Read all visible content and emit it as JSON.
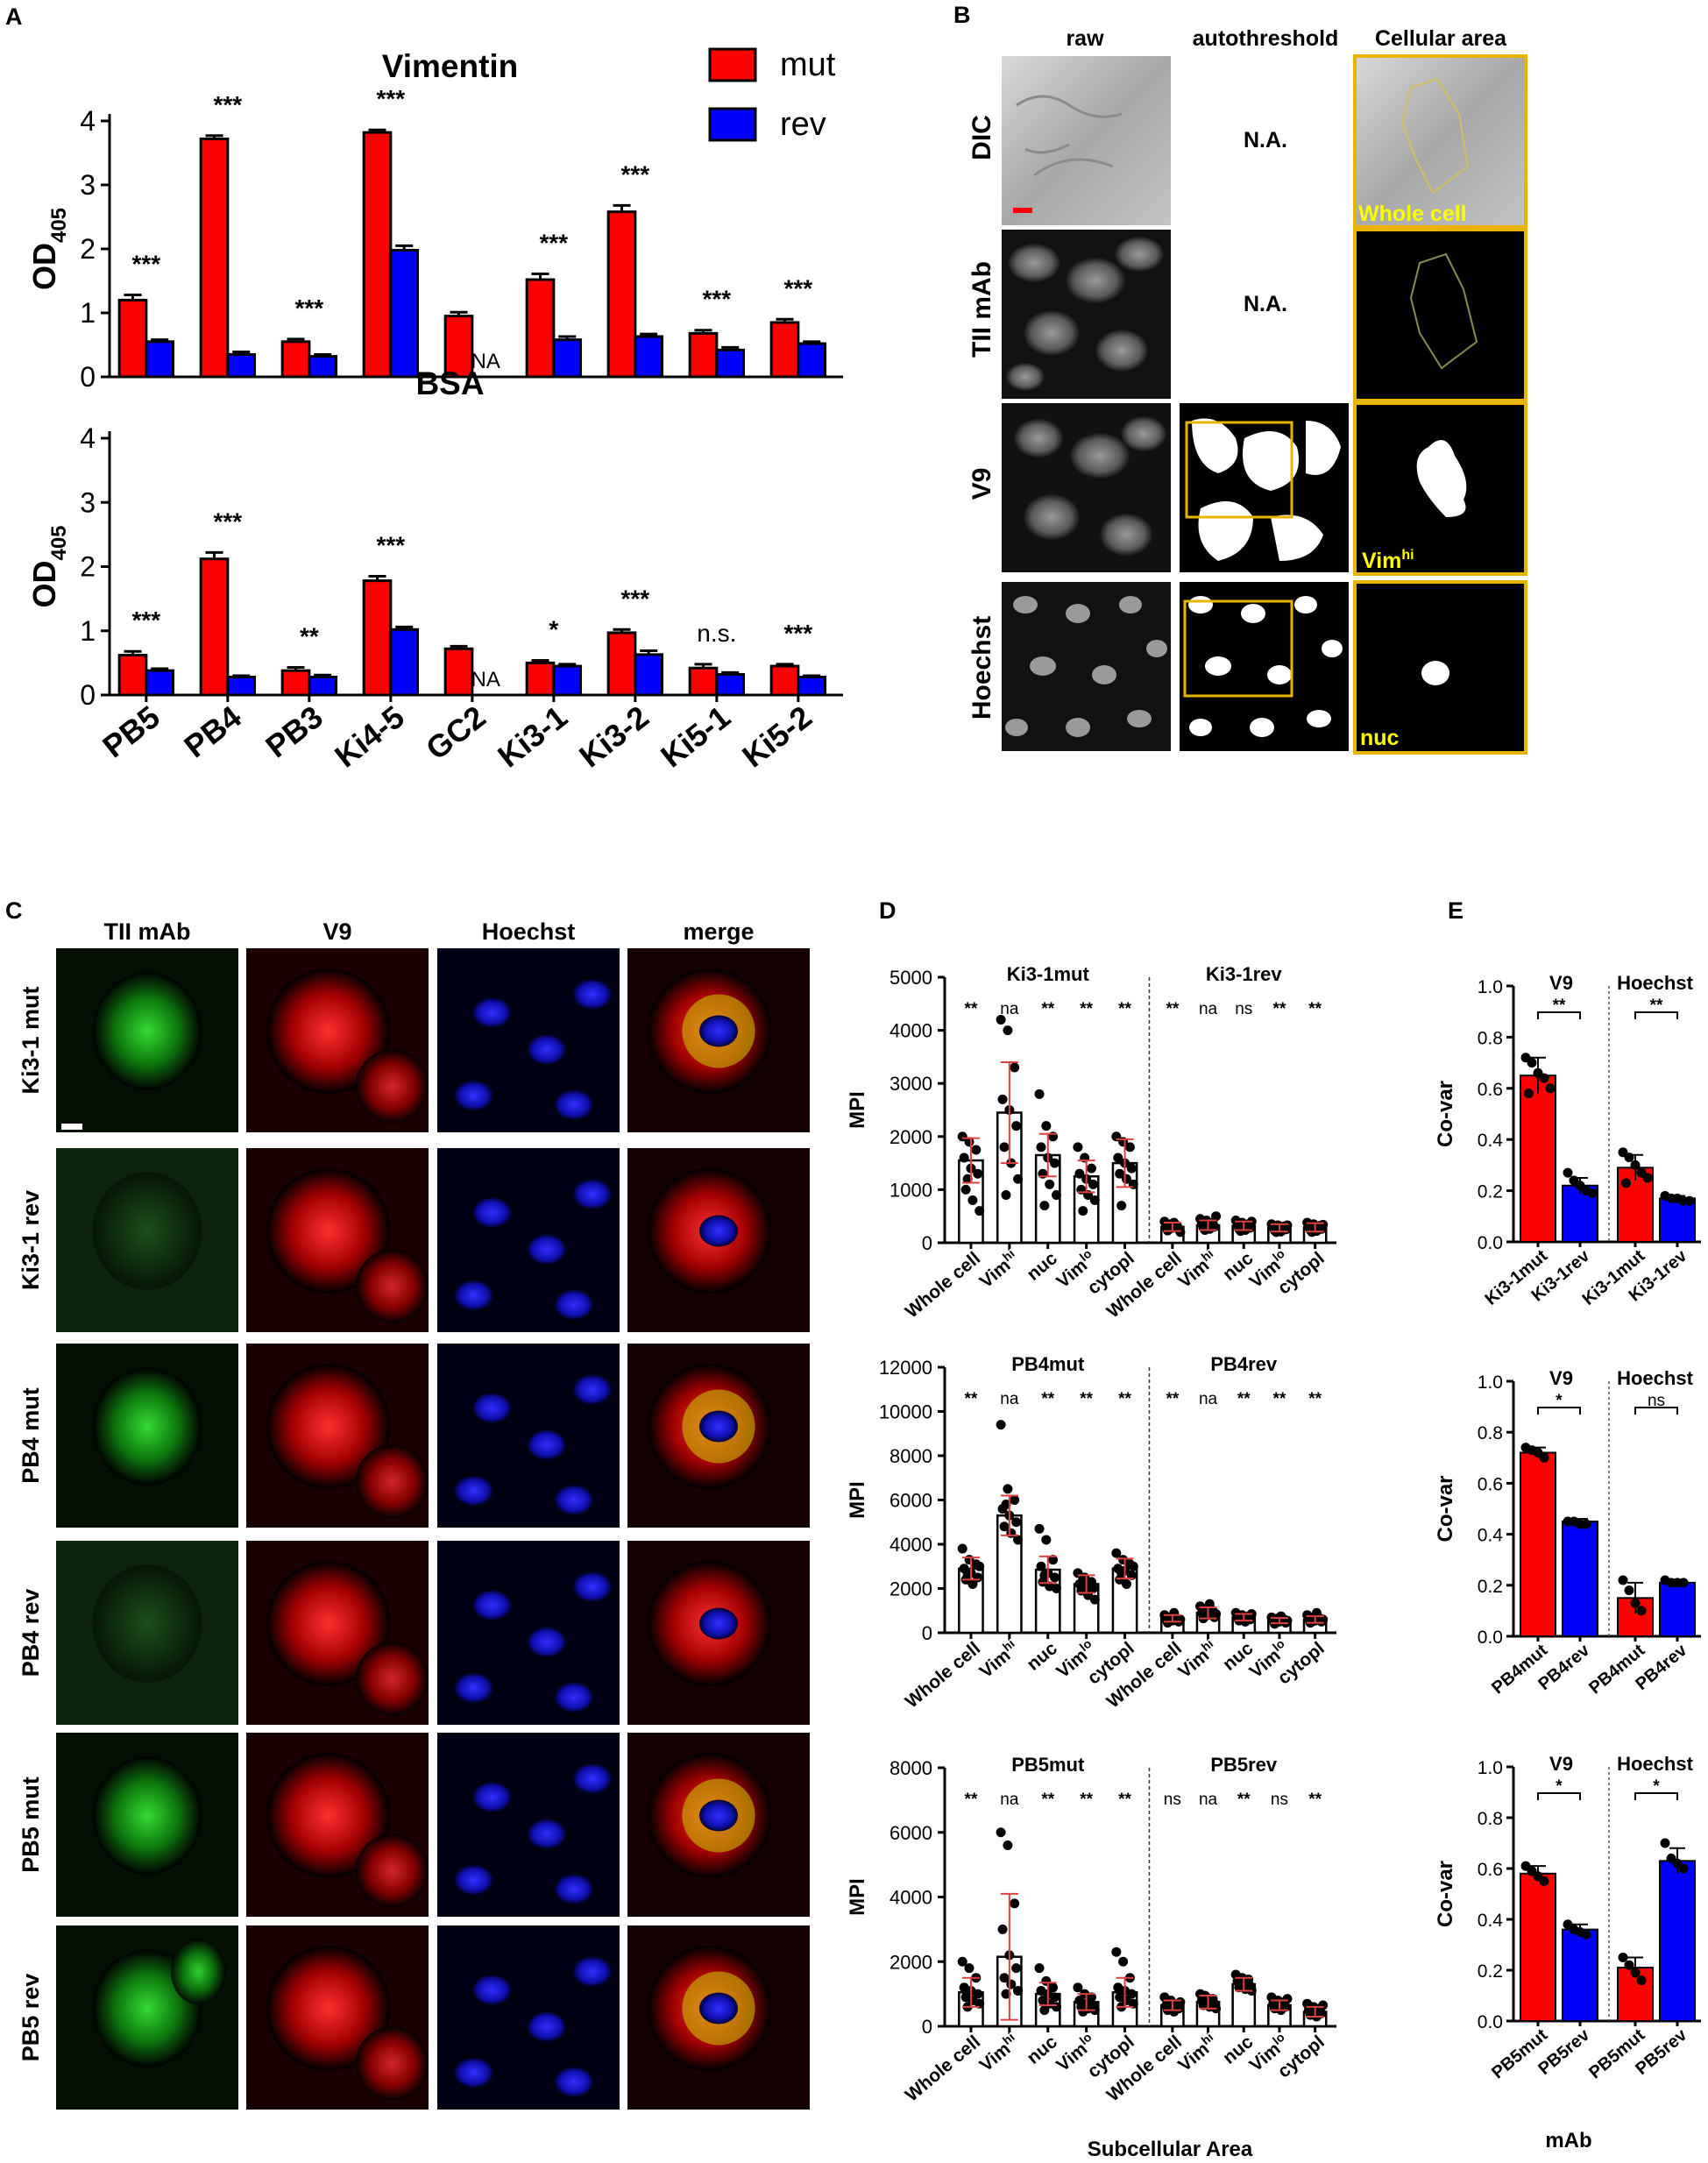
{
  "panel_letters": {
    "A": "A",
    "B": "B",
    "C": "C",
    "D": "D",
    "E": "E"
  },
  "chart_data": [
    {
      "id": "A-top",
      "type": "bar",
      "title": "Vimentin",
      "ylabel": "OD",
      "ylabel_sub": "405",
      "ylim": [
        0,
        4
      ],
      "yticks": [
        "0",
        "1",
        "2",
        "3",
        "4"
      ],
      "categories": [
        "PB5",
        "PB4",
        "PB3",
        "Ki4-5",
        "GC2",
        "Ki3-1",
        "Ki3-2",
        "Ki5-1",
        "Ki5-2"
      ],
      "series": [
        {
          "name": "mut",
          "color": "#ff0000",
          "values": [
            1.2,
            3.72,
            0.55,
            3.82,
            0.95,
            1.52,
            2.58,
            0.68,
            0.85
          ],
          "errors": [
            0.08,
            0.05,
            0.04,
            0.04,
            0.06,
            0.09,
            0.1,
            0.05,
            0.05
          ]
        },
        {
          "name": "rev",
          "color": "#0000ff",
          "values": [
            0.55,
            0.35,
            0.32,
            1.98,
            null,
            0.58,
            0.63,
            0.42,
            0.52
          ],
          "errors": [
            0.03,
            0.04,
            0.03,
            0.07,
            null,
            0.05,
            0.04,
            0.04,
            0.03
          ]
        }
      ],
      "na_label": "NA",
      "annotations": [
        "***",
        "***",
        "***",
        "***",
        "",
        "***",
        "***",
        "***",
        "***"
      ]
    },
    {
      "id": "A-bottom",
      "type": "bar",
      "title": "BSA",
      "ylabel": "OD",
      "ylabel_sub": "405",
      "ylim": [
        0,
        4
      ],
      "yticks": [
        "0",
        "1",
        "2",
        "3",
        "4"
      ],
      "categories": [
        "PB5",
        "PB4",
        "PB3",
        "Ki4-5",
        "GC2",
        "Ki3-1",
        "Ki3-2",
        "Ki5-1",
        "Ki5-2"
      ],
      "series": [
        {
          "name": "mut",
          "color": "#ff0000",
          "values": [
            0.62,
            2.12,
            0.38,
            1.78,
            0.72,
            0.5,
            0.97,
            0.42,
            0.45
          ],
          "errors": [
            0.06,
            0.1,
            0.05,
            0.07,
            0.04,
            0.04,
            0.05,
            0.06,
            0.03
          ]
        },
        {
          "name": "rev",
          "color": "#0000ff",
          "values": [
            0.38,
            0.28,
            0.28,
            1.02,
            null,
            0.45,
            0.63,
            0.32,
            0.28
          ],
          "errors": [
            0.03,
            0.02,
            0.03,
            0.04,
            null,
            0.03,
            0.06,
            0.03,
            0.02
          ]
        }
      ],
      "na_label": "NA",
      "annotations": [
        "***",
        "***",
        "**",
        "***",
        "",
        "*",
        "***",
        "n.s.",
        "***"
      ]
    },
    {
      "id": "D1",
      "type": "bar",
      "ylabel": "MPI",
      "ylim": [
        0,
        5000
      ],
      "yticks": [
        "0",
        "1000",
        "2000",
        "3000",
        "4000",
        "5000"
      ],
      "group_titles": [
        "Ki3-1mut",
        "Ki3-1rev"
      ],
      "categories": [
        "Whole cell",
        "Vim",
        "nuc",
        "Vim",
        "cytopl"
      ],
      "category_sup": [
        "",
        "hi",
        "",
        "lo",
        ""
      ],
      "groups": [
        {
          "values": [
            1550,
            2450,
            1650,
            1250,
            1500
          ],
          "errors": [
            420,
            950,
            400,
            300,
            450
          ],
          "points": [
            [
              2000,
              1900,
              1750,
              1600,
              1400,
              1300,
              1000,
              800,
              600,
              1200
            ],
            [
              4200,
              4000,
              3300,
              2700,
              2500,
              2200,
              1800,
              1500,
              1200,
              900
            ],
            [
              2800,
              2200,
              2000,
              1800,
              1600,
              1500,
              1300,
              1100,
              900,
              700
            ],
            [
              1800,
              1600,
              1400,
              1300,
              1200,
              1100,
              1000,
              900,
              800,
              600
            ],
            [
              2000,
              1900,
              1800,
              1600,
              1500,
              1400,
              1300,
              1200,
              1100,
              700
            ]
          ],
          "sig": [
            "**",
            "na",
            "**",
            "**",
            "**"
          ]
        },
        {
          "values": [
            300,
            330,
            320,
            280,
            290
          ],
          "errors": [
            80,
            90,
            80,
            70,
            80
          ],
          "points": [
            [
              400,
              350,
              320,
              300,
              280,
              250,
              230,
              380,
              200,
              260
            ],
            [
              450,
              420,
              380,
              350,
              330,
              300,
              280,
              260,
              500,
              240
            ],
            [
              420,
              380,
              350,
              330,
              300,
              280,
              260,
              240,
              400,
              220
            ],
            [
              350,
              330,
              310,
              290,
              270,
              250,
              230,
              210,
              330,
              200
            ],
            [
              380,
              350,
              320,
              300,
              280,
              260,
              240,
              220,
              340,
              200
            ]
          ],
          "sig": [
            "**",
            "na",
            "ns",
            "**",
            "**"
          ]
        }
      ]
    },
    {
      "id": "D2",
      "type": "bar",
      "ylabel": "MPI",
      "ylim": [
        0,
        12000
      ],
      "yticks": [
        "0",
        "2000",
        "4000",
        "6000",
        "8000",
        "10000",
        "12000"
      ],
      "group_titles": [
        "PB4mut",
        "PB4rev"
      ],
      "categories": [
        "Whole cell",
        "Vim",
        "nuc",
        "Vim",
        "cytopl"
      ],
      "category_sup": [
        "",
        "hi",
        "",
        "lo",
        ""
      ],
      "groups": [
        {
          "values": [
            2900,
            5300,
            2850,
            2200,
            2900
          ],
          "errors": [
            500,
            900,
            600,
            400,
            450
          ],
          "points": [
            [
              3800,
              3300,
              3100,
              2900,
              2700,
              2500,
              2400,
              2200,
              3000,
              2600
            ],
            [
              9400,
              6500,
              6000,
              5600,
              5300,
              5000,
              4800,
              4500,
              4200,
              5800
            ],
            [
              4700,
              4200,
              3300,
              3000,
              2700,
              2500,
              2300,
              2100,
              2000,
              2600
            ],
            [
              2700,
              2500,
              2300,
              2200,
              2100,
              2000,
              1900,
              1700,
              1500,
              2400
            ],
            [
              3600,
              3300,
              3100,
              2900,
              2800,
              2600,
              2400,
              2200,
              3000,
              2700
            ]
          ],
          "sig": [
            "**",
            "na",
            "**",
            "**",
            "**"
          ]
        },
        {
          "values": [
            650,
            900,
            700,
            550,
            600
          ],
          "errors": [
            150,
            250,
            150,
            120,
            150
          ],
          "points": [
            [
              800,
              700,
              650,
              600,
              550,
              500,
              450,
              900,
              600,
              700
            ],
            [
              1200,
              1100,
              1000,
              900,
              800,
              700,
              650,
              1300,
              850,
              750
            ],
            [
              900,
              800,
              750,
              700,
              650,
              600,
              550,
              500,
              850,
              700
            ],
            [
              700,
              650,
              600,
              550,
              500,
              450,
              400,
              750,
              550,
              600
            ],
            [
              800,
              700,
              650,
              600,
              550,
              500,
              450,
              900,
              600,
              500
            ]
          ],
          "sig": [
            "**",
            "na",
            "**",
            "**",
            "**"
          ]
        }
      ]
    },
    {
      "id": "D3",
      "type": "bar",
      "ylabel": "MPI",
      "ylim": [
        0,
        8000
      ],
      "yticks": [
        "0",
        "2000",
        "4000",
        "6000",
        "8000"
      ],
      "group_titles": [
        "PB5mut",
        "PB5rev"
      ],
      "categories": [
        "Whole cell",
        "Vim",
        "nuc",
        "Vim",
        "cytopl"
      ],
      "category_sup": [
        "",
        "hi",
        "",
        "lo",
        ""
      ],
      "groups": [
        {
          "values": [
            1050,
            2150,
            1000,
            750,
            1050
          ],
          "errors": [
            450,
            1950,
            350,
            250,
            450
          ],
          "points": [
            [
              2000,
              1800,
              1500,
              1200,
              1100,
              1000,
              900,
              800,
              700,
              600
            ],
            [
              6000,
              5600,
              3800,
              3000,
              2200,
              1800,
              1500,
              1300,
              1100,
              1000
            ],
            [
              1800,
              1400,
              1200,
              1100,
              1000,
              900,
              800,
              700,
              600,
              500
            ],
            [
              1200,
              1000,
              900,
              800,
              700,
              650,
              600,
              550,
              500,
              450
            ],
            [
              2300,
              2000,
              1500,
              1200,
              1100,
              1000,
              900,
              800,
              700,
              600
            ]
          ],
          "sig": [
            "**",
            "na",
            "**",
            "**",
            "**"
          ]
        },
        {
          "values": [
            650,
            750,
            1300,
            650,
            450
          ],
          "errors": [
            150,
            200,
            200,
            150,
            150
          ],
          "points": [
            [
              900,
              800,
              700,
              650,
              600,
              550,
              500,
              450,
              750,
              600
            ],
            [
              1000,
              900,
              850,
              800,
              750,
              700,
              650,
              600,
              550,
              950
            ],
            [
              1600,
              1500,
              1450,
              1400,
              1300,
              1250,
              1200,
              1150,
              1100,
              1350
            ],
            [
              900,
              800,
              750,
              700,
              650,
              600,
              550,
              500,
              850,
              700
            ],
            [
              700,
              600,
              550,
              500,
              450,
              400,
              350,
              300,
              650,
              500
            ]
          ],
          "sig": [
            "ns",
            "na",
            "**",
            "ns",
            "**"
          ]
        }
      ]
    },
    {
      "id": "E1",
      "type": "bar",
      "ylabel": "Co-var",
      "ylim": [
        0,
        1
      ],
      "yticks": [
        "0.0",
        "0.2",
        "0.4",
        "0.6",
        "0.8",
        "1.0"
      ],
      "group_titles": [
        "V9",
        "Hoechst"
      ],
      "categories": [
        "Ki3-1mut",
        "Ki3-1rev",
        "Ki3-1mut",
        "Ki3-1rev"
      ],
      "colors": [
        "#ff0000",
        "#0000ff",
        "#ff0000",
        "#0000ff"
      ],
      "values": [
        0.65,
        0.22,
        0.29,
        0.17
      ],
      "errors": [
        0.07,
        0.03,
        0.05,
        0.01
      ],
      "points": [
        [
          0.72,
          0.7,
          0.66,
          0.64,
          0.6,
          0.58
        ],
        [
          0.27,
          0.24,
          0.22,
          0.2,
          0.19
        ],
        [
          0.35,
          0.33,
          0.3,
          0.27,
          0.25,
          0.23
        ],
        [
          0.18,
          0.17,
          0.17,
          0.16,
          0.16
        ]
      ],
      "sig": [
        "**",
        "**"
      ]
    },
    {
      "id": "E2",
      "type": "bar",
      "ylabel": "Co-var",
      "ylim": [
        0,
        1
      ],
      "yticks": [
        "0.0",
        "0.2",
        "0.4",
        "0.6",
        "0.8",
        "1.0"
      ],
      "group_titles": [
        "V9",
        "Hoechst"
      ],
      "categories": [
        "PB4mut",
        "PB4rev",
        "PB4mut",
        "PB4rev"
      ],
      "colors": [
        "#ff0000",
        "#0000ff",
        "#ff0000",
        "#0000ff"
      ],
      "values": [
        0.72,
        0.45,
        0.15,
        0.21
      ],
      "errors": [
        0.02,
        0.01,
        0.06,
        0.01
      ],
      "points": [
        [
          0.74,
          0.73,
          0.72,
          0.7
        ],
        [
          0.45,
          0.45,
          0.44,
          0.44
        ],
        [
          0.22,
          0.18,
          0.13,
          0.1
        ],
        [
          0.22,
          0.21,
          0.21,
          0.21
        ]
      ],
      "sig": [
        "*",
        "ns"
      ]
    },
    {
      "id": "E3",
      "type": "bar",
      "ylabel": "Co-var",
      "ylim": [
        0,
        1
      ],
      "yticks": [
        "0.0",
        "0.2",
        "0.4",
        "0.6",
        "0.8",
        "1.0"
      ],
      "group_titles": [
        "V9",
        "Hoechst"
      ],
      "categories": [
        "PB5mut",
        "PB5rev",
        "PB5mut",
        "PB5rev"
      ],
      "colors": [
        "#ff0000",
        "#0000ff",
        "#ff0000",
        "#0000ff"
      ],
      "values": [
        0.58,
        0.36,
        0.21,
        0.63
      ],
      "errors": [
        0.03,
        0.02,
        0.04,
        0.05
      ],
      "points": [
        [
          0.61,
          0.59,
          0.57,
          0.55
        ],
        [
          0.38,
          0.36,
          0.35,
          0.34
        ],
        [
          0.25,
          0.22,
          0.19,
          0.16
        ],
        [
          0.7,
          0.64,
          0.62,
          0.6
        ]
      ],
      "sig": [
        "*",
        "*"
      ]
    }
  ],
  "legend_A": [
    {
      "label": "mut",
      "color": "#ff0000"
    },
    {
      "label": "rev",
      "color": "#0000ff"
    }
  ],
  "panel_B": {
    "col_headers": [
      "raw",
      "autothreshold",
      "Cellular area"
    ],
    "row_labels": [
      "DIC",
      "TII mAb",
      "V9",
      "Hoechst"
    ],
    "na_text": "N.A.",
    "overlay_labels": {
      "whole": "Whole cell",
      "vim": "Vim",
      "vim_sup": "hi",
      "nuc": "nuc"
    }
  },
  "panel_C": {
    "col_headers": [
      "TII mAb",
      "V9",
      "Hoechst",
      "merge"
    ],
    "row_labels": [
      "Ki3-1 mut",
      "Ki3-1 rev",
      "PB4 mut",
      "PB4 rev",
      "PB5 mut",
      "PB5 rev"
    ]
  },
  "panel_D_xlabel": "Subcellular Area",
  "panel_E_xlabel": "mAb"
}
